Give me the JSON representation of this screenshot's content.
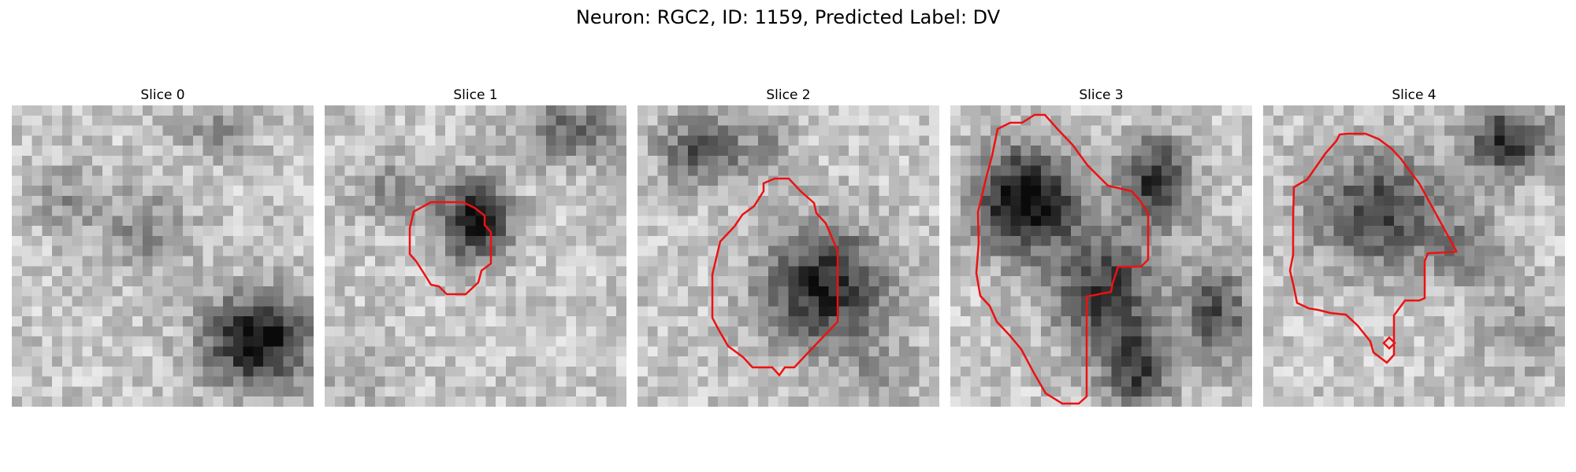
{
  "figure": {
    "suptitle": "Neuron: RGC2, ID: 1159, Predicted Label: DV"
  },
  "panels": [
    {
      "title": "Slice 0",
      "has_contour": false
    },
    {
      "title": "Slice 1",
      "has_contour": true
    },
    {
      "title": "Slice 2",
      "has_contour": true
    },
    {
      "title": "Slice 3",
      "has_contour": true
    },
    {
      "title": "Slice 4",
      "has_contour": true
    }
  ],
  "colors": {
    "contour": "#ee1111",
    "background": "#ffffff"
  }
}
